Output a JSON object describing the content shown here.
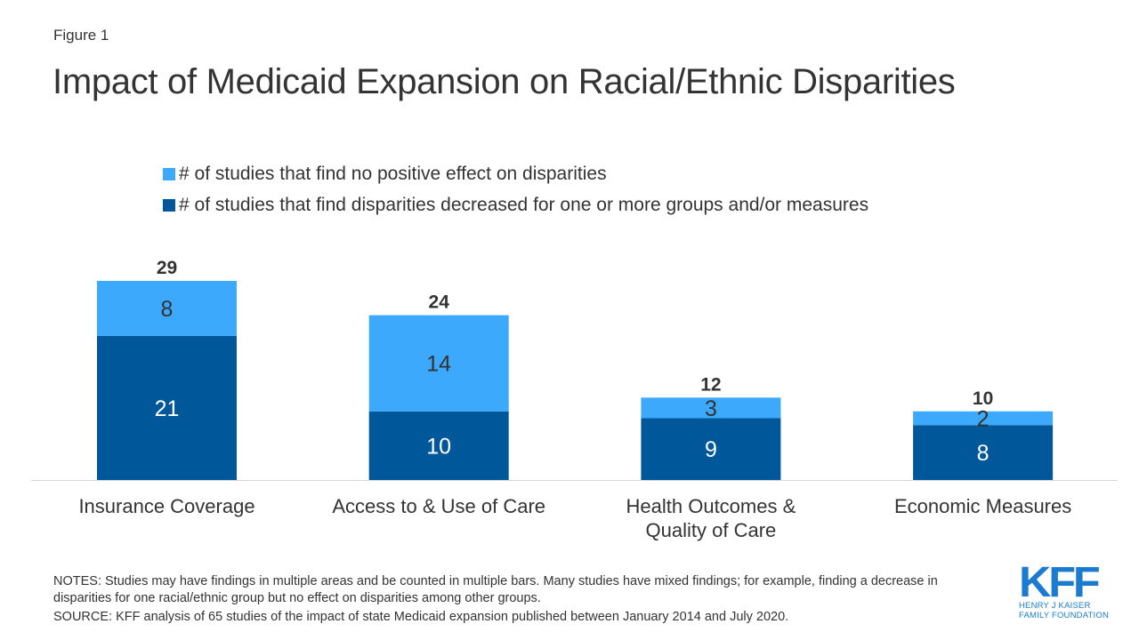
{
  "figure_label": "Figure 1",
  "chart_data": {
    "type": "bar",
    "stacked": true,
    "title": "Impact of Medicaid Expansion on Racial/Ethnic Disparities",
    "categories": [
      "Insurance Coverage",
      "Access to & Use of Care",
      "Health Outcomes & Quality of Care",
      "Economic Measures"
    ],
    "series": [
      {
        "name": "# of studies that find disparities decreased for one or more groups and/or measures",
        "values": [
          21,
          10,
          9,
          8
        ],
        "color": "#00579A",
        "label_color": "#ffffff"
      },
      {
        "name": "# of studies that find no positive effect on disparities",
        "values": [
          8,
          14,
          3,
          2
        ],
        "color": "#3CA9FC",
        "label_color": "#333333"
      }
    ],
    "totals": [
      29,
      24,
      12,
      10
    ],
    "ylim": [
      0,
      29
    ],
    "grid": false,
    "legend_position": "top"
  },
  "notes": "NOTES: Studies may have findings in multiple areas and be counted in multiple bars. Many studies have mixed findings; for example, finding a decrease in disparities for one racial/ethnic group but no effect on disparities among other groups.",
  "source": "SOURCE: KFF analysis of 65 studies of the impact of state Medicaid expansion published between January 2014 and July 2020.",
  "logo": {
    "text": "KFF",
    "line1": "HENRY J KAISER",
    "line2": "FAMILY FOUNDATION"
  }
}
